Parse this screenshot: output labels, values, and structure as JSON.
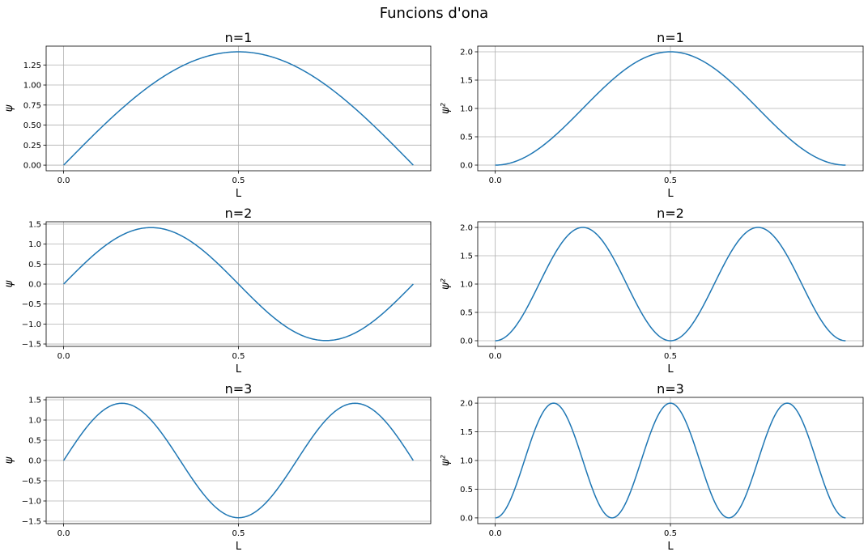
{
  "figure_title": "Funcions d'ona",
  "chart_data": [
    {
      "type": "line",
      "title": "n=1",
      "xlabel": "L",
      "ylabel": "ψ",
      "n": 1,
      "kind": "psi",
      "xlim": [
        -0.05,
        1.05
      ],
      "ylim": [
        -0.07,
        1.485
      ],
      "xticks": [
        0.0,
        0.5
      ],
      "xtick_labels": [
        "0.0",
        "0.5"
      ],
      "yticks": [
        0,
        0.25,
        0.5,
        0.75,
        1.0,
        1.25
      ],
      "ytick_labels": [
        "0.00",
        "0.25",
        "0.50",
        "0.75",
        "1.00",
        "1.25"
      ],
      "x": [
        0,
        0.1,
        0.2,
        0.3,
        0.4,
        0.5,
        0.6,
        0.7,
        0.8,
        0.9,
        1.0
      ],
      "y": [
        0,
        0.437,
        0.831,
        1.144,
        1.345,
        1.414,
        1.345,
        1.144,
        0.831,
        0.437,
        0
      ],
      "grid": true
    },
    {
      "type": "line",
      "title": "n=1",
      "xlabel": "L",
      "ylabel": "ψ²",
      "n": 1,
      "kind": "psi2",
      "xlim": [
        -0.05,
        1.05
      ],
      "ylim": [
        -0.1,
        2.1
      ],
      "xticks": [
        0.0,
        0.5
      ],
      "xtick_labels": [
        "0.0",
        "0.5"
      ],
      "yticks": [
        0,
        0.5,
        1.0,
        1.5,
        2.0
      ],
      "ytick_labels": [
        "0.0",
        "0.5",
        "1.0",
        "1.5",
        "2.0"
      ],
      "x": [
        0,
        0.1,
        0.2,
        0.3,
        0.4,
        0.5,
        0.6,
        0.7,
        0.8,
        0.9,
        1.0
      ],
      "y": [
        0,
        0.191,
        0.691,
        1.309,
        1.809,
        2.0,
        1.809,
        1.309,
        0.691,
        0.191,
        0
      ],
      "grid": true
    },
    {
      "type": "line",
      "title": "n=2",
      "xlabel": "L",
      "ylabel": "ψ",
      "n": 2,
      "kind": "psi",
      "xlim": [
        -0.05,
        1.05
      ],
      "ylim": [
        -1.56,
        1.56
      ],
      "xticks": [
        0.0,
        0.5
      ],
      "xtick_labels": [
        "0.0",
        "0.5"
      ],
      "yticks": [
        -1.5,
        -1.0,
        -0.5,
        0,
        0.5,
        1.0,
        1.5
      ],
      "ytick_labels": [
        "−1.5",
        "−1.0",
        "−0.5",
        "0.0",
        "0.5",
        "1.0",
        "1.5"
      ],
      "x": [
        0,
        0.125,
        0.25,
        0.375,
        0.5,
        0.625,
        0.75,
        0.875,
        1.0
      ],
      "y": [
        0,
        1.0,
        1.414,
        1.0,
        0,
        -1.0,
        -1.414,
        -1.0,
        0
      ],
      "grid": true
    },
    {
      "type": "line",
      "title": "n=2",
      "xlabel": "L",
      "ylabel": "ψ²",
      "n": 2,
      "kind": "psi2",
      "xlim": [
        -0.05,
        1.05
      ],
      "ylim": [
        -0.1,
        2.1
      ],
      "xticks": [
        0.0,
        0.5
      ],
      "xtick_labels": [
        "0.0",
        "0.5"
      ],
      "yticks": [
        0,
        0.5,
        1.0,
        1.5,
        2.0
      ],
      "ytick_labels": [
        "0.0",
        "0.5",
        "1.0",
        "1.5",
        "2.0"
      ],
      "x": [
        0,
        0.125,
        0.25,
        0.375,
        0.5,
        0.625,
        0.75,
        0.875,
        1.0
      ],
      "y": [
        0,
        1.0,
        2.0,
        1.0,
        0,
        1.0,
        2.0,
        1.0,
        0
      ],
      "grid": true
    },
    {
      "type": "line",
      "title": "n=3",
      "xlabel": "L",
      "ylabel": "ψ",
      "n": 3,
      "kind": "psi",
      "xlim": [
        -0.05,
        1.05
      ],
      "ylim": [
        -1.56,
        1.56
      ],
      "xticks": [
        0.0,
        0.5
      ],
      "xtick_labels": [
        "0.0",
        "0.5"
      ],
      "yticks": [
        -1.5,
        -1.0,
        -0.5,
        0,
        0.5,
        1.0,
        1.5
      ],
      "ytick_labels": [
        "−1.5",
        "−1.0",
        "−0.5",
        "0.0",
        "0.5",
        "1.0",
        "1.5"
      ],
      "x": [
        0,
        0.167,
        0.333,
        0.5,
        0.667,
        0.833,
        1.0
      ],
      "y": [
        0,
        1.414,
        0,
        -1.414,
        0,
        1.414,
        0
      ],
      "grid": true
    },
    {
      "type": "line",
      "title": "n=3",
      "xlabel": "L",
      "ylabel": "ψ²",
      "n": 3,
      "kind": "psi2",
      "xlim": [
        -0.05,
        1.05
      ],
      "ylim": [
        -0.1,
        2.1
      ],
      "xticks": [
        0.0,
        0.5
      ],
      "xtick_labels": [
        "0.0",
        "0.5"
      ],
      "yticks": [
        0,
        0.5,
        1.0,
        1.5,
        2.0
      ],
      "ytick_labels": [
        "0.0",
        "0.5",
        "1.0",
        "1.5",
        "2.0"
      ],
      "x": [
        0,
        0.167,
        0.333,
        0.5,
        0.667,
        0.833,
        1.0
      ],
      "y": [
        0,
        2.0,
        0,
        2.0,
        0,
        2.0,
        0
      ],
      "grid": true
    }
  ]
}
